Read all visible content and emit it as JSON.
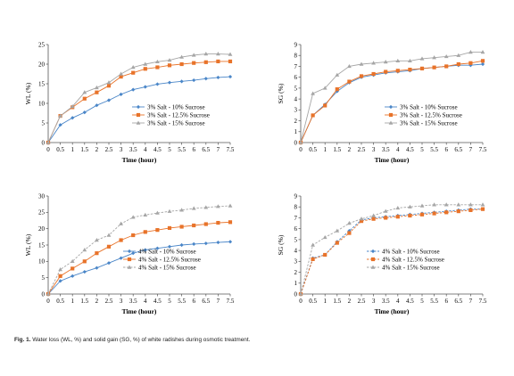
{
  "caption": {
    "label": "Fig. 1.",
    "text": "Water loss (WL, %) and solid gain (SG, %) of white radishes during osmotic treatment."
  },
  "colors": {
    "s10": "#4a86c8",
    "s125": "#e8732a",
    "s15": "#a6a6a6"
  },
  "chart_data": [
    {
      "type": "line",
      "xlabel": "Time (hour)",
      "ylabel": "WL (%)",
      "xlim": [
        0,
        7.5
      ],
      "ylim": [
        0,
        25
      ],
      "x_ticks": [
        0,
        0.5,
        1,
        1.5,
        2,
        2.5,
        3,
        3.5,
        4,
        4.5,
        5,
        5.5,
        6,
        6.5,
        7,
        7.5
      ],
      "y_ticks": [
        0,
        5,
        10,
        15,
        20,
        25
      ],
      "legend_position": "bottom-right",
      "x": [
        0,
        0.5,
        1,
        1.5,
        2,
        2.5,
        3,
        3.5,
        4,
        4.5,
        5,
        5.5,
        6,
        6.5,
        7,
        7.5
      ],
      "series": [
        {
          "name": "3% Salt - 10% Sucrose",
          "color_key": "s10",
          "marker": "diamond",
          "dash": "solid",
          "values": [
            0,
            4.5,
            6.3,
            7.7,
            9.5,
            10.8,
            12.3,
            13.5,
            14.2,
            14.9,
            15.3,
            15.6,
            15.9,
            16.3,
            16.6,
            16.8
          ]
        },
        {
          "name": "3% Salt - 12.5% Sucrose",
          "color_key": "s125",
          "marker": "square",
          "dash": "solid",
          "values": [
            0,
            6.8,
            9.0,
            11.2,
            12.8,
            14.5,
            16.8,
            17.8,
            18.8,
            19.2,
            19.7,
            20.0,
            20.3,
            20.5,
            20.7,
            20.7
          ]
        },
        {
          "name": "3% Salt - 15% Sucrose",
          "color_key": "s15",
          "marker": "triangle",
          "dash": "solid",
          "values": [
            0,
            6.8,
            9.2,
            12.8,
            14.0,
            15.3,
            17.5,
            19.2,
            20.0,
            20.6,
            21.0,
            21.8,
            22.3,
            22.6,
            22.6,
            22.5
          ]
        }
      ]
    },
    {
      "type": "line",
      "xlabel": "Time (hour)",
      "ylabel": "SG (%)",
      "xlim": [
        0,
        7.5
      ],
      "ylim": [
        0,
        9
      ],
      "x_ticks": [
        0,
        0.5,
        1,
        1.5,
        2,
        2.5,
        3,
        3.5,
        4,
        4.5,
        5,
        5.5,
        6,
        6.5,
        7,
        7.5
      ],
      "y_ticks": [
        0,
        1,
        2,
        3,
        4,
        5,
        6,
        7,
        8,
        9
      ],
      "legend_position": "bottom-right",
      "x": [
        0,
        0.5,
        1,
        1.5,
        2,
        2.5,
        3,
        3.5,
        4,
        4.5,
        5,
        5.5,
        6,
        6.5,
        7,
        7.5
      ],
      "series": [
        {
          "name": "3% Salt - 10% Sucrose",
          "color_key": "s10",
          "marker": "diamond",
          "dash": "solid",
          "values": [
            0,
            2.5,
            3.5,
            4.7,
            5.5,
            6.0,
            6.2,
            6.4,
            6.5,
            6.6,
            6.8,
            6.9,
            7.0,
            7.1,
            7.1,
            7.2
          ]
        },
        {
          "name": "3% Salt - 12.5% Sucrose",
          "color_key": "s125",
          "marker": "square",
          "dash": "solid",
          "values": [
            0,
            2.5,
            3.4,
            4.9,
            5.6,
            6.1,
            6.3,
            6.5,
            6.6,
            6.7,
            6.8,
            6.9,
            7.0,
            7.2,
            7.3,
            7.5
          ]
        },
        {
          "name": "3% Salt - 15% Sucrose",
          "color_key": "s15",
          "marker": "triangle",
          "dash": "solid",
          "values": [
            0,
            4.5,
            5.0,
            6.2,
            7.0,
            7.2,
            7.3,
            7.4,
            7.5,
            7.5,
            7.7,
            7.8,
            7.9,
            8.0,
            8.3,
            8.3
          ]
        }
      ]
    },
    {
      "type": "line",
      "xlabel": "Time (hour)",
      "ylabel": "WL (%)",
      "xlim": [
        0,
        7.5
      ],
      "ylim": [
        0,
        30
      ],
      "x_ticks": [
        0,
        0.5,
        1,
        1.5,
        2,
        2.5,
        3,
        3.5,
        4,
        4.5,
        5,
        5.5,
        6,
        6.5,
        7,
        7.5
      ],
      "y_ticks": [
        0,
        5,
        10,
        15,
        20,
        25,
        30
      ],
      "legend_position": "bottom-right",
      "x": [
        0,
        0.5,
        1,
        1.5,
        2,
        2.5,
        3,
        3.5,
        4,
        4.5,
        5,
        5.5,
        6,
        6.5,
        7,
        7.5
      ],
      "series": [
        {
          "name": "4% Salt - 10% Sucrose",
          "color_key": "s10",
          "marker": "diamond",
          "dash": "solid",
          "values": [
            0,
            4.0,
            5.5,
            6.8,
            8.0,
            9.5,
            11.0,
            12.5,
            13.5,
            14.0,
            14.5,
            15.0,
            15.3,
            15.5,
            15.8,
            16.0
          ]
        },
        {
          "name": "4% Salt - 12.5% Sucrose",
          "color_key": "s125",
          "marker": "square",
          "dash": "solid",
          "values": [
            0,
            5.5,
            7.8,
            10.0,
            12.5,
            14.5,
            16.5,
            18.0,
            19.0,
            19.6,
            20.2,
            20.6,
            21.0,
            21.4,
            21.8,
            22.0
          ]
        },
        {
          "name": "4% Salt - 15% Sucrose",
          "color_key": "s15",
          "marker": "triangle",
          "dash": "dashed",
          "values": [
            0,
            7.5,
            10.0,
            13.5,
            16.5,
            18.0,
            21.5,
            23.5,
            24.2,
            24.8,
            25.3,
            25.7,
            26.2,
            26.5,
            26.8,
            27.0
          ]
        }
      ]
    },
    {
      "type": "line",
      "xlabel": "Time (hour)",
      "ylabel": "SG (%)",
      "xlim": [
        0,
        7.5
      ],
      "ylim": [
        0,
        9
      ],
      "x_ticks": [
        0,
        0.5,
        1,
        1.5,
        2,
        2.5,
        3,
        3.5,
        4,
        4.5,
        5,
        5.5,
        6,
        6.5,
        7,
        7.5
      ],
      "y_ticks": [
        0,
        1,
        2,
        3,
        4,
        5,
        6,
        7,
        8,
        9
      ],
      "legend_position": "bottom-center",
      "x": [
        0,
        0.5,
        1,
        1.5,
        2,
        2.5,
        3,
        3.5,
        4,
        4.5,
        5,
        5.5,
        6,
        6.5,
        7,
        7.5
      ],
      "series": [
        {
          "name": "4% Salt - 10% Sucrose",
          "color_key": "s10",
          "marker": "diamond",
          "dash": "dashed",
          "values": [
            0,
            3.3,
            3.6,
            4.8,
            5.8,
            6.8,
            7.0,
            7.1,
            7.2,
            7.3,
            7.4,
            7.5,
            7.6,
            7.7,
            7.8,
            7.8
          ]
        },
        {
          "name": "4% Salt - 12.5% Sucrose",
          "color_key": "s125",
          "marker": "square",
          "dash": "dashed",
          "values": [
            0,
            3.2,
            3.6,
            4.7,
            5.6,
            6.7,
            6.9,
            7.0,
            7.1,
            7.2,
            7.3,
            7.4,
            7.5,
            7.6,
            7.7,
            7.8
          ]
        },
        {
          "name": "4% Salt - 15% Sucrose",
          "color_key": "s15",
          "marker": "triangle",
          "dash": "dashed",
          "values": [
            0,
            4.5,
            5.2,
            5.8,
            6.5,
            6.9,
            7.2,
            7.6,
            7.9,
            8.0,
            8.1,
            8.2,
            8.2,
            8.2,
            8.2,
            8.2
          ]
        }
      ]
    }
  ]
}
